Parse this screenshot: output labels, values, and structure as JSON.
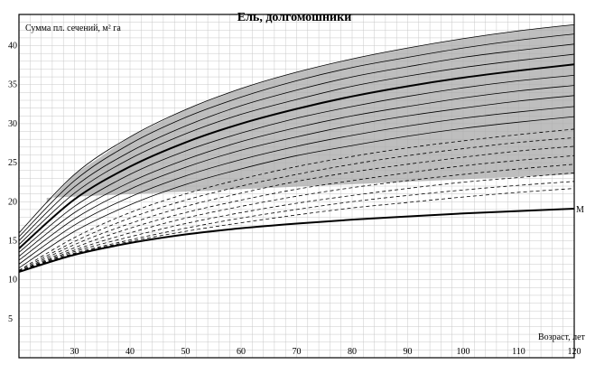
{
  "chart_data": {
    "type": "line",
    "title": "Ель, долгомошники",
    "ylabel": "Сумма пл. сечений, м² га",
    "xlabel": "Возраст, лет",
    "xlim": [
      20,
      120
    ],
    "ylim": [
      0,
      44
    ],
    "x_ticks": [
      30,
      40,
      50,
      60,
      70,
      80,
      90,
      100,
      110,
      120
    ],
    "y_ticks": [
      5,
      10,
      15,
      20,
      25,
      30,
      35,
      40
    ],
    "grid": true,
    "shaded_region": {
      "lower_y": 20.5,
      "lower_y_end": 23.5,
      "fill": "#a8a8a8"
    },
    "curve_label": "M",
    "x": [
      20,
      30,
      40,
      50,
      60,
      70,
      80,
      90,
      100,
      110,
      120
    ],
    "series": [
      {
        "name": "M",
        "style": "bold",
        "values": [
          11.0,
          13.2,
          14.7,
          15.8,
          16.6,
          17.2,
          17.7,
          18.1,
          18.5,
          18.8,
          19.1
        ]
      },
      {
        "style": "bold",
        "values": [
          14.0,
          20.3,
          24.5,
          27.6,
          30.0,
          31.9,
          33.5,
          34.8,
          35.9,
          36.8,
          37.6
        ]
      },
      {
        "style": "solid",
        "values": [
          16.0,
          23.5,
          28.3,
          31.8,
          34.5,
          36.6,
          38.3,
          39.7,
          40.9,
          41.9,
          42.7
        ]
      },
      {
        "style": "solid",
        "values": [
          15.5,
          22.7,
          27.4,
          30.8,
          33.4,
          35.5,
          37.2,
          38.5,
          39.7,
          40.7,
          41.5
        ]
      },
      {
        "style": "solid",
        "values": [
          15.0,
          21.9,
          26.4,
          29.7,
          32.3,
          34.3,
          36.0,
          37.3,
          38.5,
          39.4,
          40.2
        ]
      },
      {
        "style": "solid",
        "values": [
          14.5,
          21.1,
          25.5,
          28.7,
          31.2,
          33.1,
          34.8,
          36.1,
          37.2,
          38.1,
          38.9
        ]
      },
      {
        "style": "solid",
        "values": [
          13.5,
          19.4,
          23.5,
          26.5,
          28.8,
          30.7,
          32.2,
          33.5,
          34.6,
          35.5,
          36.2
        ]
      },
      {
        "style": "solid",
        "values": [
          13.0,
          18.6,
          22.5,
          25.4,
          27.7,
          29.5,
          31.0,
          32.2,
          33.3,
          34.2,
          34.9
        ]
      },
      {
        "style": "solid",
        "values": [
          12.5,
          17.8,
          21.6,
          24.4,
          26.6,
          28.3,
          29.8,
          31.0,
          32.0,
          32.9,
          33.6
        ]
      },
      {
        "style": "solid",
        "values": [
          12.0,
          17.0,
          20.6,
          23.3,
          25.4,
          27.1,
          28.5,
          29.7,
          30.7,
          31.5,
          32.2
        ]
      },
      {
        "style": "solid",
        "values": [
          11.5,
          16.2,
          19.6,
          22.2,
          24.2,
          25.9,
          27.2,
          28.4,
          29.4,
          30.2,
          30.9
        ]
      },
      {
        "style": "dashed",
        "values": [
          11.2,
          15.4,
          18.6,
          21.0,
          22.9,
          24.5,
          25.8,
          26.9,
          27.8,
          28.6,
          29.3
        ]
      },
      {
        "style": "dashed",
        "values": [
          11.1,
          14.9,
          17.9,
          20.2,
          22.0,
          23.5,
          24.8,
          25.9,
          26.8,
          27.6,
          28.2
        ]
      },
      {
        "style": "dashed",
        "values": [
          11.0,
          14.5,
          17.2,
          19.4,
          21.1,
          22.6,
          23.8,
          24.8,
          25.7,
          26.5,
          27.1
        ]
      },
      {
        "style": "dashed",
        "values": [
          11.0,
          14.1,
          16.6,
          18.6,
          20.2,
          21.6,
          22.7,
          23.7,
          24.6,
          25.3,
          25.9
        ]
      },
      {
        "style": "dashed",
        "values": [
          11.0,
          13.8,
          16.0,
          17.9,
          19.4,
          20.7,
          21.8,
          22.7,
          23.5,
          24.2,
          24.8
        ]
      },
      {
        "style": "dashed",
        "values": [
          11.0,
          13.6,
          15.5,
          17.2,
          18.6,
          19.8,
          20.8,
          21.7,
          22.5,
          23.1,
          23.7
        ]
      },
      {
        "style": "dashed",
        "values": [
          11.0,
          13.4,
          15.1,
          16.6,
          17.9,
          19.0,
          20.0,
          20.8,
          21.5,
          22.1,
          22.6
        ]
      },
      {
        "style": "dashed",
        "values": [
          11.0,
          13.3,
          14.9,
          16.2,
          17.3,
          18.3,
          19.2,
          19.9,
          20.6,
          21.2,
          21.7
        ]
      }
    ]
  }
}
